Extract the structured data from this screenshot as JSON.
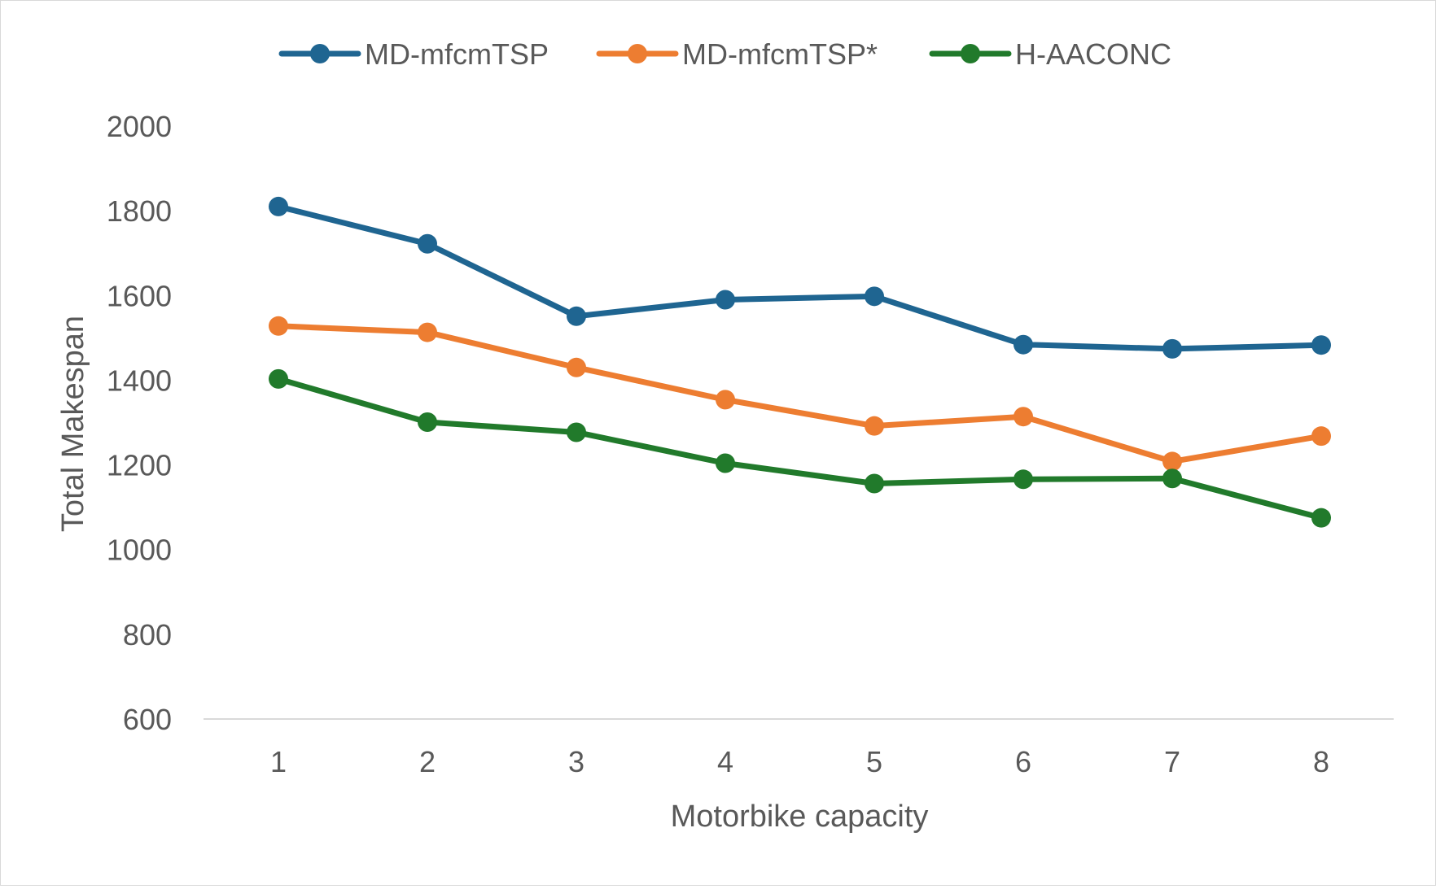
{
  "chart_data": {
    "type": "line",
    "title": "",
    "xlabel": "Motorbike capacity",
    "ylabel": "Total Makespan",
    "ylim": [
      600,
      2000
    ],
    "yticks": [
      600,
      800,
      1000,
      1200,
      1400,
      1600,
      1800,
      2000
    ],
    "grid": false,
    "legend_position": "top",
    "x": [
      1,
      2,
      3,
      4,
      5,
      6,
      7,
      8
    ],
    "categories": [
      "1",
      "2",
      "3",
      "4",
      "5",
      "6",
      "7",
      "8"
    ],
    "series": [
      {
        "name": "MD-mfcmTSP",
        "color": "#1f6591",
        "values": [
          1810,
          1722,
          1551,
          1590,
          1598,
          1484,
          1474,
          1483
        ]
      },
      {
        "name": "MD-mfcmTSP*",
        "color": "#ed7d31",
        "values": [
          1528,
          1513,
          1430,
          1354,
          1292,
          1314,
          1208,
          1268
        ]
      },
      {
        "name": "H-AACONC",
        "color": "#217a2b",
        "values": [
          1403,
          1301,
          1277,
          1204,
          1156,
          1166,
          1168,
          1075
        ]
      }
    ]
  }
}
